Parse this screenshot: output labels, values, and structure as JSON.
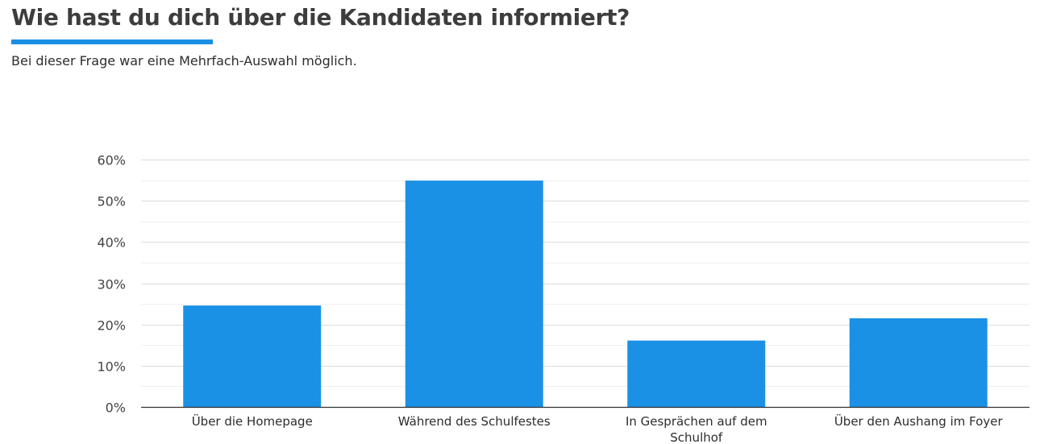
{
  "header": {
    "title": "Wie hast du dich über die Kandidaten informiert?",
    "subtitle": "Bei dieser Frage war eine Mehrfach-Auswahl möglich."
  },
  "colors": {
    "accent": "#1a8fe3",
    "bar": "#1b91e6",
    "gridline": "#dcdcdc",
    "minor_gridline": "#efefef",
    "axis": "#333333"
  },
  "chart_data": {
    "type": "bar",
    "title": "",
    "xlabel": "",
    "ylabel": "",
    "categories": [
      [
        "Über die Homepage"
      ],
      [
        "Während des Schulfestes"
      ],
      [
        "In Gesprächen auf dem",
        "Schulhof"
      ],
      [
        "Über den Aushang im Foyer"
      ]
    ],
    "values": [
      24.6,
      54.9,
      16.1,
      21.5
    ],
    "ylim": [
      0,
      60
    ],
    "yticks": [
      0,
      10,
      20,
      30,
      40,
      50,
      60
    ],
    "ytick_labels": [
      "0%",
      "10%",
      "20%",
      "30%",
      "40%",
      "50%",
      "60%"
    ],
    "grid": true,
    "legend": false
  }
}
